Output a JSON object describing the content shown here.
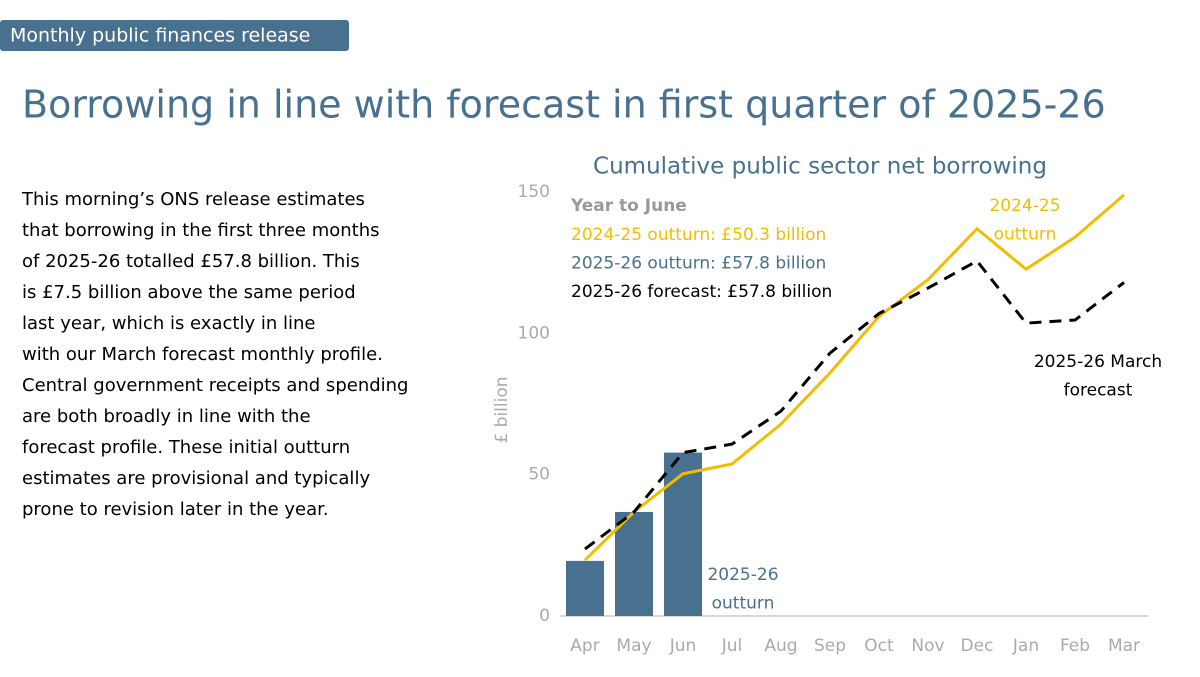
{
  "header": "Monthly public finances release",
  "title": "Borrowing in line with forecast in first quarter of 2025-26",
  "body_lines": [
    "This morning’s ONS release estimates",
    "that borrowing in the first three months",
    "of 2025-26 totalled £57.8 billion. This",
    "is £7.5 billion above the same period",
    "last year, which is exactly in line",
    "with our March forecast monthly profile.",
    "Central government receipts and spending",
    "are both broadly in line with the",
    "forecast profile. These initial outturn",
    "estimates are provisional and typically",
    "prone to revision later in the year."
  ],
  "chart_data": {
    "type": "bar",
    "title": "Cumulative public sector net borrowing",
    "ylabel": "£ billion",
    "legend_title": "Year to June",
    "categories": [
      "Apr",
      "May",
      "Jun",
      "Jul",
      "Aug",
      "Sep",
      "Oct",
      "Nov",
      "Dec",
      "Jan",
      "Feb",
      "Mar"
    ],
    "series": [
      {
        "name": "2024-25 outturn: £50.3 billion",
        "type": "line",
        "color": "#f2bd00",
        "values": [
          19.8,
          36.8,
          50.3,
          53.8,
          67.9,
          86,
          106,
          119,
          137,
          122.7,
          134,
          149
        ]
      },
      {
        "name": "2025-26 outturn: £57.8 billion",
        "type": "bar",
        "color": "#48708f",
        "values": [
          19.5,
          36.8,
          57.8,
          null,
          null,
          null,
          null,
          null,
          null,
          null,
          null,
          null
        ]
      },
      {
        "name": "2025-26 forecast: £57.8 billion",
        "type": "line",
        "dashed": true,
        "color": "#000000",
        "values": [
          23.7,
          36.8,
          57.8,
          60.8,
          72.5,
          93,
          107,
          116,
          125.6,
          103.6,
          104.7,
          118
        ]
      }
    ],
    "annotations": [
      {
        "lines": [
          "2024-25",
          "outturn"
        ],
        "series": 0
      },
      {
        "lines": [
          "2025-26",
          "outturn"
        ],
        "series": 1
      },
      {
        "lines": [
          "2025-26 March",
          "forecast"
        ],
        "series": 2
      }
    ],
    "ylim": [
      0,
      150
    ],
    "yticks": [
      0,
      50,
      100,
      150
    ],
    "grid": false
  }
}
